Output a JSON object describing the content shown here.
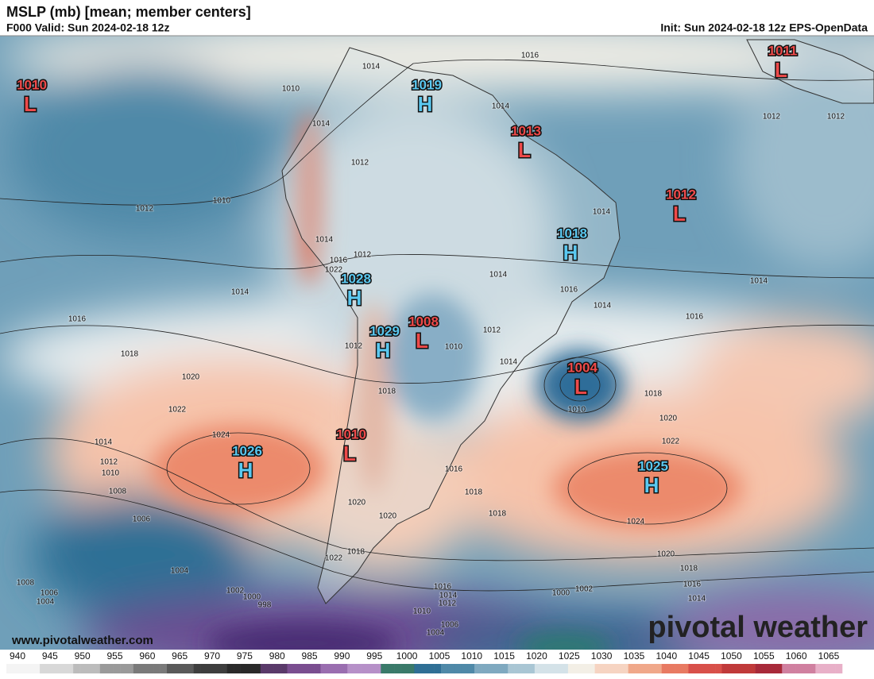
{
  "header": {
    "title": "MSLP (mb) [mean; member centers]",
    "valid": "F000 Valid: Sun 2024-02-18 12z",
    "init": "Init: Sun 2024-02-18 12z EPS-OpenData"
  },
  "centers": [
    {
      "kind": "L",
      "value": 1010
    },
    {
      "kind": "H",
      "value": 1019
    },
    {
      "kind": "L",
      "value": 1013
    },
    {
      "kind": "L",
      "value": 1011
    },
    {
      "kind": "L",
      "value": 1012
    },
    {
      "kind": "H",
      "value": 1018
    },
    {
      "kind": "H",
      "value": 1028
    },
    {
      "kind": "H",
      "value": 1029
    },
    {
      "kind": "L",
      "value": 1008
    },
    {
      "kind": "L",
      "value": 1004
    },
    {
      "kind": "L",
      "value": 1010
    },
    {
      "kind": "H",
      "value": 1026
    },
    {
      "kind": "H",
      "value": 1025
    }
  ],
  "contour_labels": [
    1016,
    1014,
    1014,
    1012,
    1010,
    1014,
    1012,
    1010,
    1014,
    1014,
    1014,
    1016,
    1016,
    1018,
    1020,
    1022,
    1024,
    1014,
    1012,
    1010,
    1008,
    1006,
    1004,
    1008,
    1006,
    1004,
    1018,
    1020,
    1022,
    1024,
    1020,
    1018,
    1016,
    1014,
    1016,
    1018,
    1018,
    1020,
    1020,
    1018,
    1022,
    1016,
    1014,
    1012,
    1010,
    1006,
    1004,
    1002,
    1000,
    998,
    1000,
    1002,
    1012,
    1012,
    1016,
    1014,
    1014,
    1012,
    1014,
    1010,
    1010,
    1018,
    1012,
    1016,
    1022,
    1012,
    1014
  ],
  "colorbar_ticks": [
    940,
    945,
    950,
    955,
    960,
    965,
    970,
    975,
    980,
    985,
    990,
    995,
    1000,
    1005,
    1010,
    1015,
    1020,
    1025,
    1030,
    1035,
    1040,
    1045,
    1050,
    1055,
    1060,
    1065
  ],
  "footer": {
    "website": "www.pivotalweather.com",
    "logo": "pivotal weather"
  }
}
